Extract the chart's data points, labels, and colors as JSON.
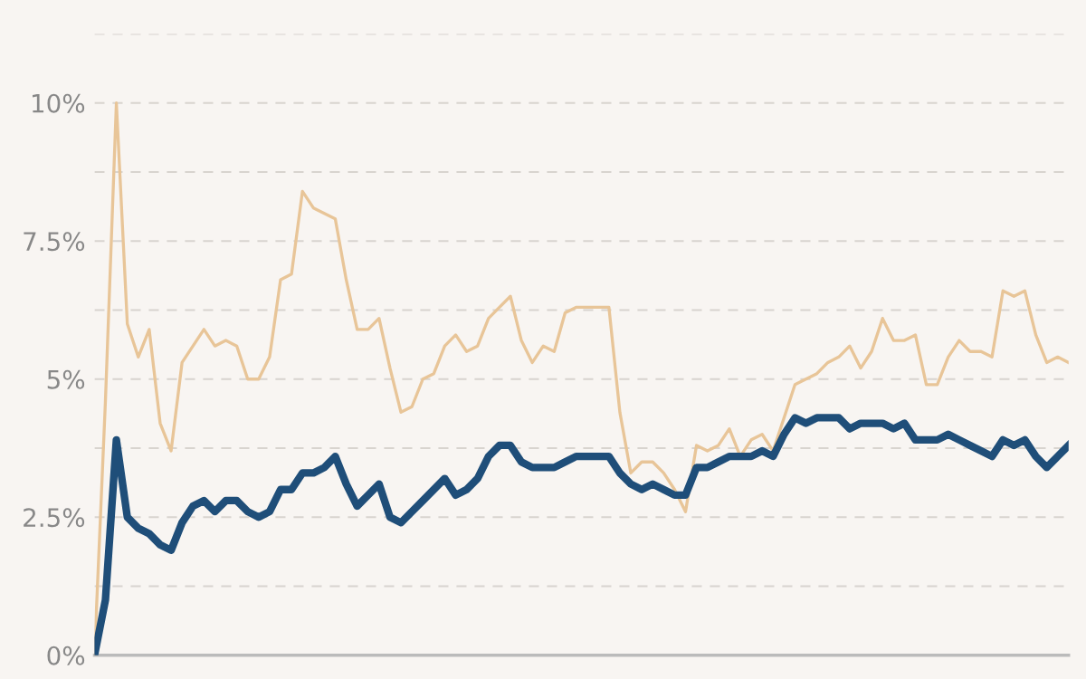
{
  "chart_data": {
    "type": "line",
    "ylim": [
      0,
      11.25
    ],
    "yticks": [
      {
        "value": 0,
        "label": "0%"
      },
      {
        "value": 1.25,
        "label": null
      },
      {
        "value": 2.5,
        "label": "2.5%"
      },
      {
        "value": 3.75,
        "label": null
      },
      {
        "value": 5,
        "label": "5%"
      },
      {
        "value": 6.25,
        "label": null
      },
      {
        "value": 7.5,
        "label": "7.5%"
      },
      {
        "value": 8.75,
        "label": null
      },
      {
        "value": 10,
        "label": "10%"
      },
      {
        "value": 11.25,
        "label": null
      }
    ],
    "tick_labels": "y",
    "grid": "y",
    "marker": "none",
    "line_style": "solid",
    "categories": [
      null,
      null,
      null,
      null,
      null,
      null,
      null,
      null,
      null,
      null,
      null,
      null,
      null,
      null,
      null,
      null,
      null,
      null,
      null,
      null,
      null,
      null,
      null,
      null,
      null,
      null,
      null,
      null,
      null,
      null,
      null,
      null,
      null,
      null,
      null,
      null,
      null,
      null,
      null,
      null,
      null,
      null,
      null,
      null,
      null,
      null,
      null,
      null,
      null,
      null,
      null,
      null,
      null,
      null,
      null,
      null,
      null,
      null,
      null,
      null,
      null,
      null,
      null,
      null,
      null,
      null,
      null,
      null,
      null,
      null,
      null,
      null,
      null,
      null,
      null,
      null,
      null,
      null,
      null,
      null,
      null,
      null,
      null,
      null,
      null,
      null,
      null,
      null,
      null,
      null
    ],
    "series": [
      {
        "color": "#e8c598",
        "values": [
          0,
          4.6,
          10,
          6.0,
          5.4,
          5.9,
          4.2,
          3.7,
          5.3,
          5.6,
          5.9,
          5.6,
          5.7,
          5.6,
          5.0,
          5.0,
          5.4,
          6.8,
          6.9,
          8.4,
          8.1,
          8.0,
          7.9,
          6.8,
          5.9,
          5.9,
          6.1,
          5.2,
          4.4,
          4.5,
          5.0,
          5.1,
          5.6,
          5.8,
          5.5,
          5.6,
          6.1,
          6.3,
          6.5,
          5.7,
          5.3,
          5.6,
          5.5,
          6.2,
          6.3,
          6.3,
          6.3,
          6.3,
          4.4,
          3.3,
          3.5,
          3.5,
          3.3,
          3.0,
          2.6,
          3.8,
          3.7,
          3.8,
          4.1,
          3.6,
          3.9,
          4.0,
          3.7,
          4.3,
          4.9,
          5.0,
          5.1,
          5.3,
          5.4,
          5.6,
          5.2,
          5.5,
          6.1,
          5.7,
          5.7,
          5.8,
          4.9,
          4.9,
          5.4,
          5.7,
          5.5,
          5.5,
          5.4,
          6.6,
          6.5,
          6.6,
          5.8,
          5.3,
          5.4,
          5.3
        ]
      },
      {
        "color": "#1f4e79",
        "values": [
          0,
          1.0,
          3.9,
          2.5,
          2.3,
          2.2,
          2.0,
          1.9,
          2.4,
          2.7,
          2.8,
          2.6,
          2.8,
          2.8,
          2.6,
          2.5,
          2.6,
          3.0,
          3.0,
          3.3,
          3.3,
          3.4,
          3.6,
          3.1,
          2.7,
          2.9,
          3.1,
          2.5,
          2.4,
          2.6,
          2.8,
          3.0,
          3.2,
          2.9,
          3.0,
          3.2,
          3.6,
          3.8,
          3.8,
          3.5,
          3.4,
          3.4,
          3.4,
          3.5,
          3.6,
          3.6,
          3.6,
          3.6,
          3.3,
          3.1,
          3.0,
          3.1,
          3.0,
          2.9,
          2.9,
          3.4,
          3.4,
          3.5,
          3.6,
          3.6,
          3.6,
          3.7,
          3.6,
          4.0,
          4.3,
          4.2,
          4.3,
          4.3,
          4.3,
          4.1,
          4.2,
          4.2,
          4.2,
          4.1,
          4.2,
          3.9,
          3.9,
          3.9,
          4.0,
          3.9,
          3.8,
          3.7,
          3.6,
          3.9,
          3.8,
          3.9,
          3.6,
          3.4,
          3.6,
          3.8
        ]
      }
    ]
  }
}
